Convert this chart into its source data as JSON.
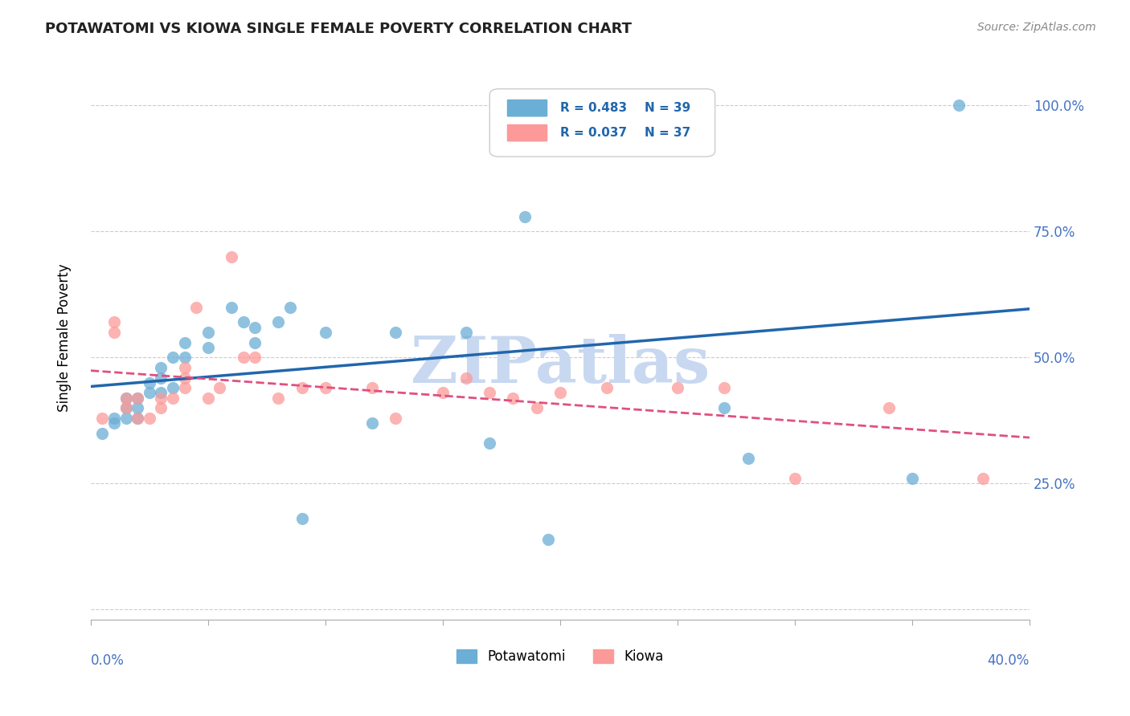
{
  "title": "POTAWATOMI VS KIOWA SINGLE FEMALE POVERTY CORRELATION CHART",
  "source": "Source: ZipAtlas.com",
  "ylabel": "Single Female Poverty",
  "xlim": [
    0.0,
    0.4
  ],
  "ylim": [
    -0.02,
    1.1
  ],
  "yticks": [
    0.0,
    0.25,
    0.5,
    0.75,
    1.0
  ],
  "ytick_labels": [
    "",
    "25.0%",
    "50.0%",
    "75.0%",
    "100.0%"
  ],
  "legend_r_blue": "R = 0.483",
  "legend_n_blue": "N = 39",
  "legend_r_pink": "R = 0.037",
  "legend_n_pink": "N = 37",
  "blue_color": "#6baed6",
  "pink_color": "#fb9a99",
  "line_blue": "#2166ac",
  "line_pink": "#e05080",
  "watermark": "ZIPatlas",
  "watermark_color": "#c8d8f0",
  "potawatomi_x": [
    0.005,
    0.01,
    0.01,
    0.015,
    0.015,
    0.015,
    0.02,
    0.02,
    0.02,
    0.025,
    0.025,
    0.03,
    0.03,
    0.03,
    0.035,
    0.035,
    0.04,
    0.04,
    0.05,
    0.05,
    0.06,
    0.065,
    0.07,
    0.07,
    0.08,
    0.085,
    0.09,
    0.1,
    0.12,
    0.13,
    0.16,
    0.17,
    0.185,
    0.19,
    0.195,
    0.27,
    0.28,
    0.35,
    0.37
  ],
  "potawatomi_y": [
    0.35,
    0.37,
    0.38,
    0.38,
    0.4,
    0.42,
    0.38,
    0.4,
    0.42,
    0.43,
    0.45,
    0.43,
    0.46,
    0.48,
    0.44,
    0.5,
    0.5,
    0.53,
    0.52,
    0.55,
    0.6,
    0.57,
    0.53,
    0.56,
    0.57,
    0.6,
    0.18,
    0.55,
    0.37,
    0.55,
    0.55,
    0.33,
    0.78,
    1.0,
    0.14,
    0.4,
    0.3,
    0.26,
    1.0
  ],
  "kiowa_x": [
    0.005,
    0.01,
    0.01,
    0.015,
    0.015,
    0.02,
    0.02,
    0.025,
    0.03,
    0.03,
    0.035,
    0.04,
    0.04,
    0.04,
    0.045,
    0.05,
    0.055,
    0.06,
    0.065,
    0.07,
    0.08,
    0.09,
    0.1,
    0.12,
    0.13,
    0.15,
    0.16,
    0.17,
    0.18,
    0.19,
    0.2,
    0.22,
    0.25,
    0.27,
    0.3,
    0.34,
    0.38
  ],
  "kiowa_y": [
    0.38,
    0.55,
    0.57,
    0.4,
    0.42,
    0.38,
    0.42,
    0.38,
    0.4,
    0.42,
    0.42,
    0.44,
    0.46,
    0.48,
    0.6,
    0.42,
    0.44,
    0.7,
    0.5,
    0.5,
    0.42,
    0.44,
    0.44,
    0.44,
    0.38,
    0.43,
    0.46,
    0.43,
    0.42,
    0.4,
    0.43,
    0.44,
    0.44,
    0.44,
    0.26,
    0.4,
    0.26
  ]
}
